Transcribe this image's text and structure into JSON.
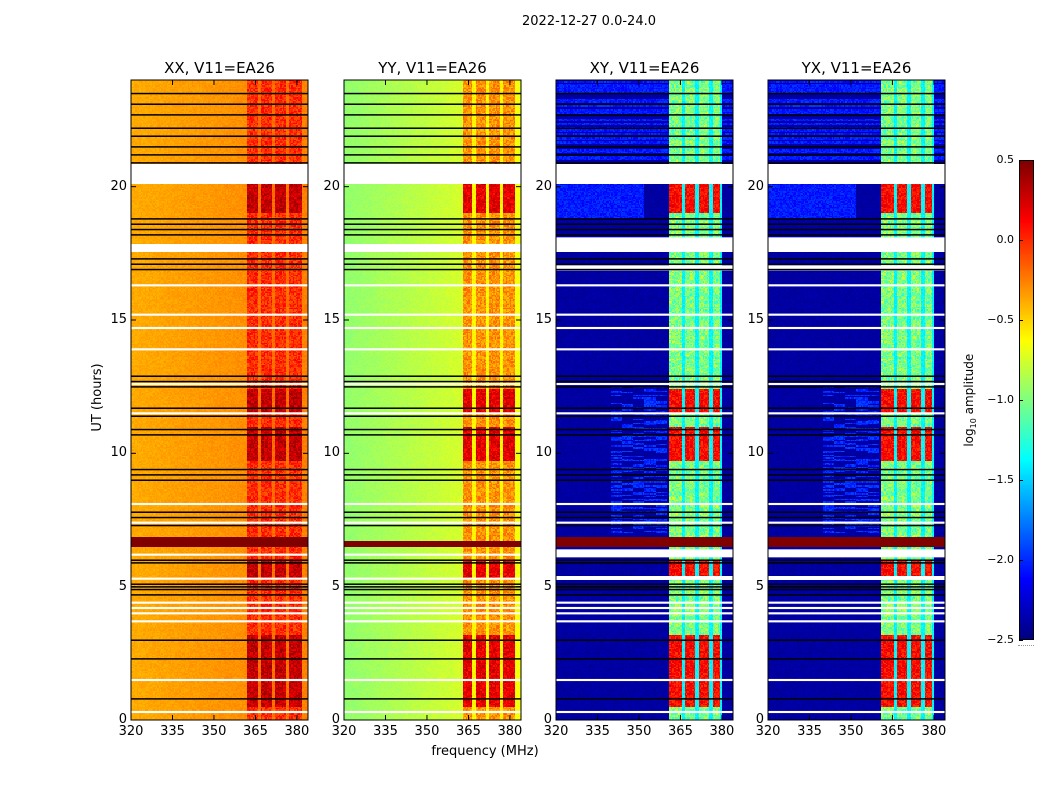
{
  "chart_data": {
    "type": "heatmap",
    "title": "2022-12-27 0.0-24.0",
    "xlabel": "frequency (MHz)",
    "ylabel": "UT (hours)",
    "xlim": [
      320,
      384
    ],
    "ylim": [
      0,
      24
    ],
    "xticks": [
      "320",
      "335",
      "350",
      "365",
      "380"
    ],
    "yticks": [
      "0",
      "5",
      "10",
      "15",
      "20"
    ],
    "colorbar": {
      "label_main": "log",
      "label_sub": "10",
      "label_rest": " amplitude",
      "range": [
        -2.5,
        0.5
      ],
      "ticks": [
        "0.5",
        "0.0",
        "−0.5",
        "−1.0",
        "−1.5",
        "−2.0",
        "−2.5"
      ],
      "colormap": "jet"
    },
    "panels": [
      {
        "title": "XX, V11=EA26",
        "base": [
          -0.38,
          -0.25
        ],
        "band": [
          362,
          382
        ],
        "band_level": [
          0.0,
          0.3
        ],
        "band_gaps": [
          366.5,
          371.5,
          376.5
        ],
        "gap_level": -0.2
      },
      {
        "title": "YY, V11=EA26",
        "base": [
          -0.95,
          -0.65
        ],
        "band": [
          363,
          382
        ],
        "band_level": [
          -0.3,
          0.2
        ],
        "band_gaps": [
          367,
          372,
          377
        ],
        "gap_level": -0.6
      },
      {
        "title": "XY, V11=EA26",
        "base": [
          -2.4,
          -2.4
        ],
        "band": [
          361,
          380
        ],
        "band_level": [
          -1.0,
          0.1
        ],
        "band_gaps": [
          366,
          371,
          376,
          380
        ],
        "gap_level": -1.4
      },
      {
        "title": "YX, V11=EA26",
        "base": [
          -2.4,
          -2.4
        ],
        "band": [
          361,
          380
        ],
        "band_level": [
          -1.0,
          0.1
        ],
        "band_gaps": [
          366,
          371,
          376,
          380
        ],
        "gap_level": -1.4
      }
    ],
    "strong_rfi_hours": [
      [
        0.5,
        3.2
      ],
      [
        5.3,
        6.0
      ],
      [
        9.7,
        11.0
      ],
      [
        11.5,
        12.4
      ],
      [
        19.0,
        20.5
      ]
    ],
    "saturated_hours": [
      6.5,
      6.85
    ],
    "flagged_hours_black": [
      23.5,
      23.1,
      22.7,
      22.2,
      21.9,
      21.5,
      21.2,
      20.9,
      18.8,
      18.6,
      18.4,
      18.2,
      17.3,
      17.1,
      16.9,
      12.9,
      12.7,
      12.5,
      11.7,
      11.4,
      10.9,
      10.7,
      9.4,
      9.2,
      9.0,
      7.8,
      7.6,
      7.3,
      6.0,
      5.9,
      5.1,
      5.0,
      4.9,
      4.7,
      3.0,
      2.3,
      0.8
    ],
    "flagged_hours_white": [
      [
        20.1,
        20.85
      ],
      [
        17.55,
        17.85
      ],
      16.3,
      15.2,
      14.7,
      13.9,
      12.6,
      11.5,
      8.1,
      7.4,
      6.2,
      5.3,
      4.4,
      4.2,
      4.0,
      3.7,
      1.5,
      0.3
    ],
    "cross_extra_white": [
      [
        17.6,
        18.1
      ],
      [
        16.85,
        17.05
      ],
      [
        6.1,
        6.4
      ],
      [
        5.25,
        5.4
      ]
    ]
  }
}
